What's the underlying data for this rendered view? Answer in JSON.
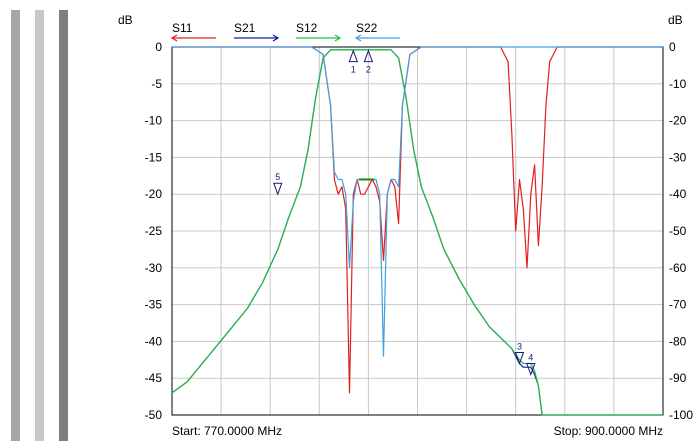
{
  "stripe_colors": [
    "#a6a6a6",
    "#c8c8c8",
    "#7f7f7f"
  ],
  "chart_data": {
    "type": "line",
    "left_axis": {
      "unit": "dB",
      "ylim": [
        -50,
        0
      ],
      "ticks": [
        "0",
        "-5",
        "-10",
        "-15",
        "-20",
        "-25",
        "-30",
        "-35",
        "-40",
        "-45",
        "-50"
      ]
    },
    "right_axis": {
      "unit": "dB",
      "ylim": [
        -100,
        0
      ],
      "ticks": [
        "0",
        "-10",
        "-20",
        "-30",
        "-40",
        "-50",
        "-60",
        "-70",
        "-80",
        "-90",
        "-100"
      ]
    },
    "xlim_mhz": [
      770,
      900
    ],
    "start_label": "Start: 770.0000 MHz",
    "stop_label": "Stop: 900.0000 MHz",
    "grid": true,
    "legend_placement": "top",
    "series": [
      {
        "name": "S11",
        "color": "#e02020",
        "axis": "left",
        "points": [
          [
            770,
            0
          ],
          [
            807,
            0
          ],
          [
            810,
            -1
          ],
          [
            812,
            -8
          ],
          [
            813,
            -18
          ],
          [
            814,
            -20
          ],
          [
            815,
            -19
          ],
          [
            816,
            -22
          ],
          [
            817,
            -47
          ],
          [
            818,
            -20
          ],
          [
            819,
            -18
          ],
          [
            820,
            -20
          ],
          [
            821,
            -20
          ],
          [
            822,
            -19
          ],
          [
            823,
            -18
          ],
          [
            824,
            -19
          ],
          [
            825,
            -21
          ],
          [
            826,
            -29
          ],
          [
            827,
            -20
          ],
          [
            828,
            -18
          ],
          [
            829,
            -19
          ],
          [
            830,
            -24
          ],
          [
            831,
            -8
          ],
          [
            833,
            -1
          ],
          [
            836,
            0
          ],
          [
            857,
            0
          ],
          [
            859,
            -2
          ],
          [
            860,
            -12
          ],
          [
            861,
            -25
          ],
          [
            862,
            -18
          ],
          [
            863,
            -22
          ],
          [
            864,
            -30
          ],
          [
            865,
            -20
          ],
          [
            866,
            -16
          ],
          [
            867,
            -27
          ],
          [
            868,
            -19
          ],
          [
            869,
            -8
          ],
          [
            870,
            -2
          ],
          [
            872,
            0
          ],
          [
            900,
            0
          ]
        ]
      },
      {
        "name": "S21",
        "color": "#1a1aa0",
        "axis": "right",
        "points": [
          [
            770,
            -94
          ],
          [
            774,
            -91
          ],
          [
            778,
            -86
          ],
          [
            782,
            -81
          ],
          [
            786,
            -76
          ],
          [
            790,
            -71
          ],
          [
            794,
            -64
          ],
          [
            798,
            -55
          ],
          [
            801,
            -46
          ],
          [
            804,
            -38
          ],
          [
            806,
            -28
          ],
          [
            808,
            -14
          ],
          [
            810,
            -3
          ],
          [
            812,
            -0.8
          ],
          [
            828,
            -0.8
          ],
          [
            830,
            -3
          ],
          [
            832,
            -14
          ],
          [
            834,
            -28
          ],
          [
            836,
            -38
          ],
          [
            839,
            -46
          ],
          [
            842,
            -55
          ],
          [
            846,
            -63
          ],
          [
            850,
            -70
          ],
          [
            854,
            -76
          ],
          [
            857,
            -79
          ],
          [
            860,
            -82
          ],
          [
            862,
            -86
          ],
          [
            863,
            -87
          ],
          [
            865,
            -87
          ],
          [
            866,
            -89
          ],
          [
            867,
            -92
          ],
          [
            868,
            -100
          ],
          [
            900,
            -100
          ]
        ]
      },
      {
        "name": "S12",
        "color": "#20c040",
        "axis": "right",
        "points": [
          [
            770,
            -94
          ],
          [
            774,
            -91
          ],
          [
            778,
            -86
          ],
          [
            782,
            -81
          ],
          [
            786,
            -76
          ],
          [
            790,
            -71
          ],
          [
            794,
            -64
          ],
          [
            798,
            -55
          ],
          [
            801,
            -46
          ],
          [
            804,
            -38
          ],
          [
            806,
            -28
          ],
          [
            808,
            -14
          ],
          [
            810,
            -3
          ],
          [
            812,
            -0.8
          ],
          [
            828,
            -0.8
          ],
          [
            830,
            -3
          ],
          [
            832,
            -14
          ],
          [
            834,
            -28
          ],
          [
            836,
            -38
          ],
          [
            839,
            -46
          ],
          [
            842,
            -55
          ],
          [
            846,
            -63
          ],
          [
            850,
            -70
          ],
          [
            854,
            -76
          ],
          [
            857,
            -79
          ],
          [
            860,
            -82
          ],
          [
            862,
            -85
          ],
          [
            863,
            -86
          ],
          [
            865,
            -86
          ],
          [
            866,
            -88
          ],
          [
            867,
            -92
          ],
          [
            868,
            -100
          ],
          [
            900,
            -100
          ]
        ]
      },
      {
        "name": "S22",
        "color": "#40a0e0",
        "axis": "left",
        "points": [
          [
            770,
            0
          ],
          [
            807,
            0
          ],
          [
            810,
            -1
          ],
          [
            812,
            -8
          ],
          [
            813,
            -17
          ],
          [
            814,
            -18
          ],
          [
            815,
            -18
          ],
          [
            816,
            -20
          ],
          [
            817,
            -30
          ],
          [
            818,
            -21
          ],
          [
            819,
            -18
          ],
          [
            820,
            -18
          ],
          [
            821,
            -18
          ],
          [
            822,
            -18
          ],
          [
            823,
            -18
          ],
          [
            824,
            -18
          ],
          [
            825,
            -20
          ],
          [
            826,
            -42
          ],
          [
            827,
            -20
          ],
          [
            828,
            -18
          ],
          [
            829,
            -18
          ],
          [
            830,
            -19
          ],
          [
            831,
            -8
          ],
          [
            833,
            -1
          ],
          [
            836,
            0
          ],
          [
            900,
            0
          ]
        ]
      }
    ],
    "markers": [
      {
        "label": "1",
        "x": 818,
        "y_db": -1,
        "pointing": "up"
      },
      {
        "label": "2",
        "x": 822,
        "y_db": -1,
        "pointing": "up"
      },
      {
        "label": "3",
        "x": 862,
        "y_db": -86,
        "pointing": "down"
      },
      {
        "label": "4",
        "x": 865,
        "y_db": -89,
        "pointing": "down"
      },
      {
        "label": "5",
        "x": 798,
        "y_db": -40,
        "pointing": "down"
      }
    ]
  }
}
